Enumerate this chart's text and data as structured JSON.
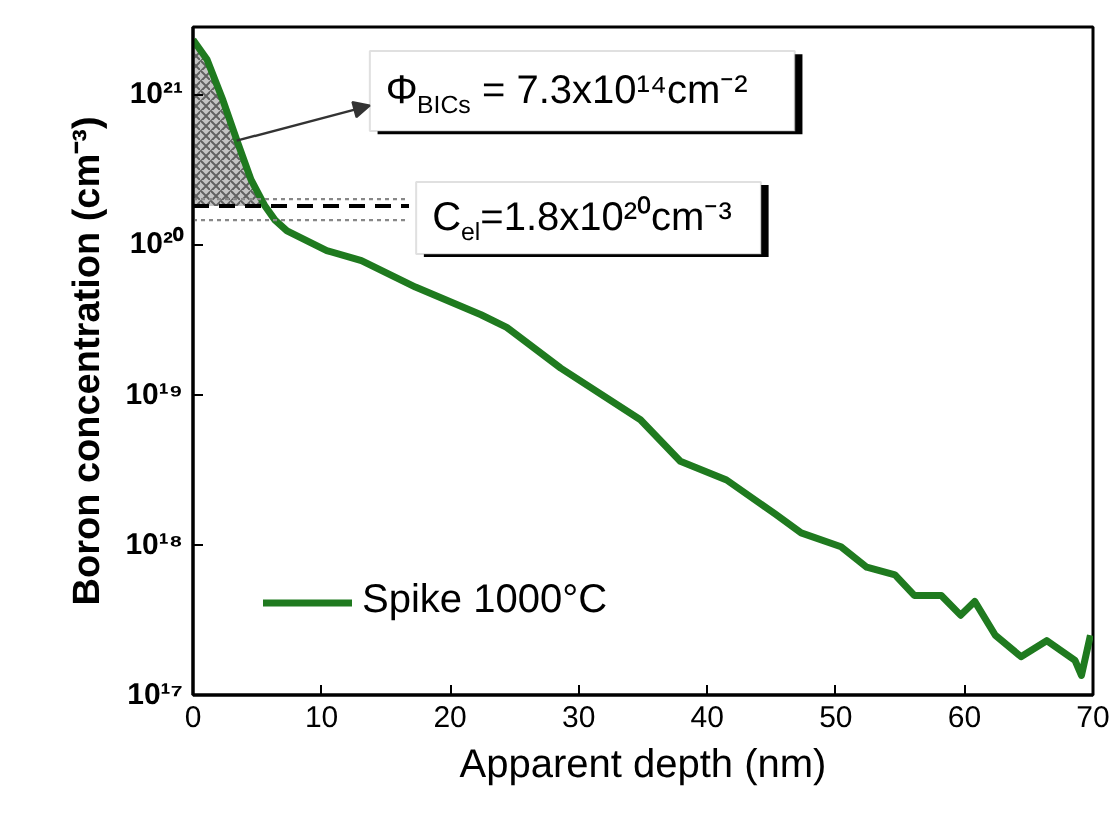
{
  "chart_data": {
    "type": "line",
    "xlabel": "Apparent depth (nm)",
    "ylabel": "Boron concentration (cm⁻³)",
    "log": "y",
    "xlim": [
      0,
      70
    ],
    "ylim": [
      1e+17,
      2.8e+21
    ],
    "xticks": [
      0,
      10,
      20,
      30,
      40,
      50,
      60,
      70
    ],
    "yticks": [
      {
        "value": 1e+17,
        "label": "10¹⁷"
      },
      {
        "value": 1e+18,
        "label": "10¹⁸"
      },
      {
        "value": 1e+19,
        "label": "10¹⁹"
      },
      {
        "value": 1e+20,
        "label": "10²⁰"
      },
      {
        "value": 1e+21,
        "label": "10²¹"
      }
    ],
    "grid": false,
    "legend": "bottom left",
    "series": [
      {
        "type": "area",
        "color": "#555555",
        "x": [
          0,
          1.09,
          2.33,
          3.42,
          4.51,
          5.6
        ],
        "values": [
          2.3e+21,
          1.7e+21,
          9.1e+20,
          4.9e+20,
          2.7e+20,
          1.8e+20
        ]
      },
      {
        "name": "Spike 1000°C",
        "color": "#1f7a1f",
        "x": [
          0,
          1.09,
          2.33,
          3.42,
          4.51,
          5.6,
          6.38,
          7.31,
          10.4,
          13.1,
          17.3,
          22.4,
          24.4,
          28.6,
          34.8,
          37.9,
          41.5,
          45.3,
          47.3,
          50.4,
          52.4,
          54.6,
          56.1,
          58.2,
          59.7,
          60.8,
          62.4,
          64.4,
          66.4,
          68.6,
          69.1,
          69.8
        ],
        "values": [
          2.3e+21,
          1.7e+21,
          9.1e+20,
          4.9e+20,
          2.7e+20,
          1.8e+20,
          1.45e+20,
          1.23e+20,
          9.1e+19,
          7.8e+19,
          5.2e+19,
          3.4e+19,
          2.8e+19,
          1.5e+19,
          6.8e+18,
          3.6e+18,
          2.7e+18,
          1.6e+18,
          1.2e+18,
          9.7e+17,
          7.1e+17,
          6.3e+17,
          4.6e+17,
          4.6e+17,
          3.4e+17,
          4.2e+17,
          2.5e+17,
          1.8e+17,
          2.3e+17,
          1.7e+17,
          1.35e+17,
          2.5e+17
        ]
      }
    ],
    "ref_lines": [
      {
        "axis": "y",
        "value": 1.8e+20,
        "color": "#000000",
        "line_style": "dashed"
      },
      {
        "axis": "y",
        "value": 2e+20,
        "color": "#888888",
        "line_style": "dotted"
      },
      {
        "axis": "y",
        "value": 1.45e+20,
        "color": "#888888",
        "line_style": "dotted"
      }
    ],
    "annotations": [
      {
        "text": "Φ$_{BICs}$ = 7.3x10¹⁴cm⁻²",
        "x": 3.4,
        "y": 4.9e+20
      },
      "C$_{el}$=1.8x10²⁰cm⁻³"
    ]
  }
}
